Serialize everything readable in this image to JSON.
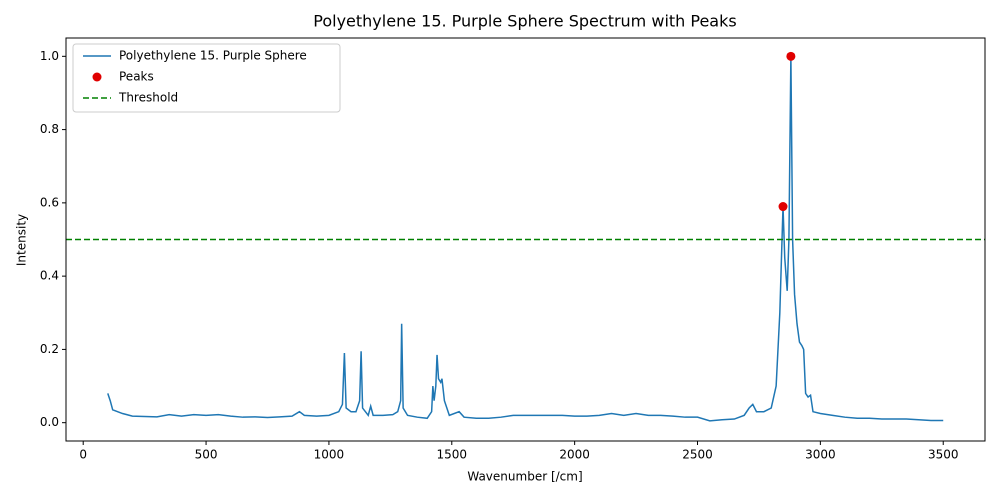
{
  "chart_data": {
    "type": "line",
    "title": "Polyethylene 15. Purple Sphere Spectrum with Peaks",
    "xlabel": "Wavenumber [/cm]",
    "ylabel": "Intensity",
    "xlim": [
      -70,
      3670
    ],
    "ylim": [
      -0.05,
      1.05
    ],
    "xticks": [
      0,
      500,
      1000,
      1500,
      2000,
      2500,
      3000,
      3500
    ],
    "yticks": [
      {
        "value": 0,
        "label": "0.0"
      },
      0.2,
      0.4,
      0.6,
      0.8,
      {
        "value": 1,
        "label": "1.0"
      }
    ],
    "legend": "upper left",
    "series": [
      {
        "type": "line",
        "name": "Polyethylene 15. Purple Sphere",
        "color": "#1f77b4",
        "x": [
          100,
          110,
          120,
          140,
          160,
          200,
          250,
          300,
          350,
          400,
          450,
          500,
          550,
          600,
          650,
          700,
          750,
          800,
          850,
          880,
          900,
          950,
          1000,
          1040,
          1055,
          1063,
          1070,
          1090,
          1110,
          1125,
          1131,
          1137,
          1160,
          1170,
          1180,
          1220,
          1260,
          1280,
          1292,
          1296,
          1302,
          1320,
          1360,
          1400,
          1418,
          1423,
          1428,
          1435,
          1440,
          1446,
          1455,
          1460,
          1470,
          1490,
          1530,
          1550,
          1600,
          1650,
          1700,
          1750,
          1800,
          1850,
          1900,
          1950,
          2000,
          2050,
          2100,
          2150,
          2200,
          2250,
          2300,
          2350,
          2400,
          2450,
          2500,
          2550,
          2600,
          2650,
          2690,
          2710,
          2725,
          2740,
          2770,
          2800,
          2820,
          2835,
          2848,
          2855,
          2865,
          2872,
          2880,
          2887,
          2895,
          2905,
          2915,
          2925,
          2932,
          2940,
          2950,
          2960,
          2970,
          3000,
          3050,
          3100,
          3150,
          3200,
          3250,
          3300,
          3350,
          3400,
          3450,
          3500
        ],
        "values": [
          0.08,
          0.06,
          0.035,
          0.03,
          0.025,
          0.018,
          0.017,
          0.016,
          0.022,
          0.018,
          0.022,
          0.02,
          0.022,
          0.018,
          0.015,
          0.016,
          0.014,
          0.016,
          0.018,
          0.03,
          0.02,
          0.018,
          0.02,
          0.03,
          0.05,
          0.19,
          0.04,
          0.03,
          0.03,
          0.06,
          0.195,
          0.04,
          0.02,
          0.045,
          0.02,
          0.02,
          0.022,
          0.03,
          0.06,
          0.27,
          0.04,
          0.02,
          0.015,
          0.012,
          0.03,
          0.1,
          0.06,
          0.1,
          0.185,
          0.12,
          0.11,
          0.12,
          0.06,
          0.02,
          0.03,
          0.015,
          0.012,
          0.012,
          0.015,
          0.02,
          0.02,
          0.02,
          0.02,
          0.02,
          0.018,
          0.018,
          0.02,
          0.025,
          0.02,
          0.025,
          0.02,
          0.02,
          0.018,
          0.015,
          0.015,
          0.005,
          0.008,
          0.01,
          0.02,
          0.04,
          0.05,
          0.03,
          0.03,
          0.04,
          0.1,
          0.3,
          0.59,
          0.45,
          0.36,
          0.5,
          1.0,
          0.5,
          0.35,
          0.27,
          0.22,
          0.21,
          0.2,
          0.08,
          0.07,
          0.075,
          0.03,
          0.025,
          0.02,
          0.015,
          0.012,
          0.012,
          0.01,
          0.01,
          0.01,
          0.008,
          0.006,
          0.006
        ]
      },
      {
        "type": "scatter",
        "name": "Peaks",
        "color": "#e00000",
        "x": [
          2848,
          2880
        ],
        "values": [
          0.59,
          1.0
        ]
      },
      {
        "type": "hline",
        "name": "Threshold",
        "color": "green",
        "value": 0.5
      }
    ]
  }
}
